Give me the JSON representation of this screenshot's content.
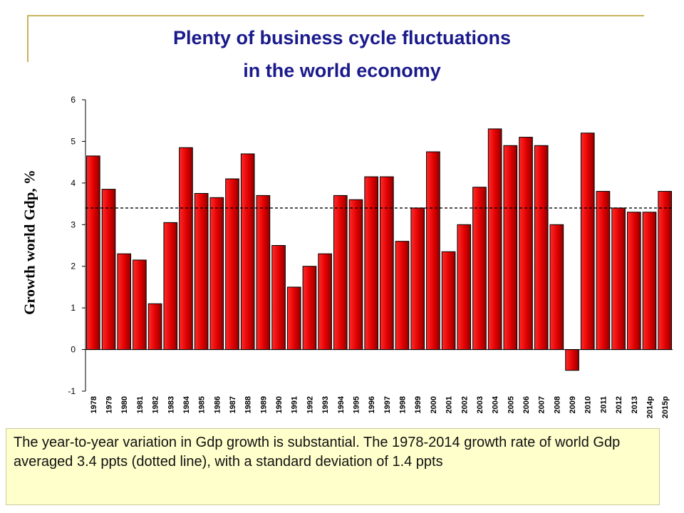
{
  "title": {
    "line1": "Plenty of business cycle fluctuations",
    "line2": "in the world economy"
  },
  "colors": {
    "title": "#1a1a8c",
    "bar": "#e00000",
    "note_bg": "#ffffcc",
    "accent_line": "#c9b35a"
  },
  "chart_data": {
    "type": "bar",
    "ylabel": "Growth world Gdp, %",
    "xlabel": "",
    "ylim": [
      -1,
      6
    ],
    "yticks": [
      -1,
      0,
      1,
      2,
      3,
      4,
      5,
      6
    ],
    "grid": false,
    "categories": [
      "1978",
      "1979",
      "1980",
      "1981",
      "1982",
      "1983",
      "1984",
      "1985",
      "1986",
      "1987",
      "1988",
      "1989",
      "1990",
      "1991",
      "1992",
      "1993",
      "1994",
      "1995",
      "1996",
      "1997",
      "1998",
      "1999",
      "2000",
      "2001",
      "2002",
      "2003",
      "2004",
      "2005",
      "2006",
      "2007",
      "2008",
      "2009",
      "2010",
      "2011",
      "2012",
      "2013",
      "2014p",
      "2015p"
    ],
    "series": [
      {
        "values": [
          4.65,
          3.85,
          2.3,
          2.15,
          1.1,
          3.05,
          4.85,
          3.75,
          3.65,
          4.1,
          4.7,
          3.7,
          2.5,
          1.5,
          2.0,
          2.3,
          3.7,
          3.6,
          4.15,
          4.15,
          2.6,
          3.4,
          4.75,
          2.35,
          3.0,
          3.9,
          5.3,
          4.9,
          5.1,
          4.9,
          3.0,
          -0.5,
          5.2,
          3.8,
          3.4,
          3.3,
          3.3,
          3.8
        ]
      }
    ],
    "reference_line": {
      "value": 3.4,
      "style": "dotted"
    }
  },
  "note": "The year-to-year variation in Gdp growth is substantial. The 1978-2014 growth rate of world Gdp averaged 3.4 ppts (dotted line), with a standard deviation of 1.4 ppts"
}
